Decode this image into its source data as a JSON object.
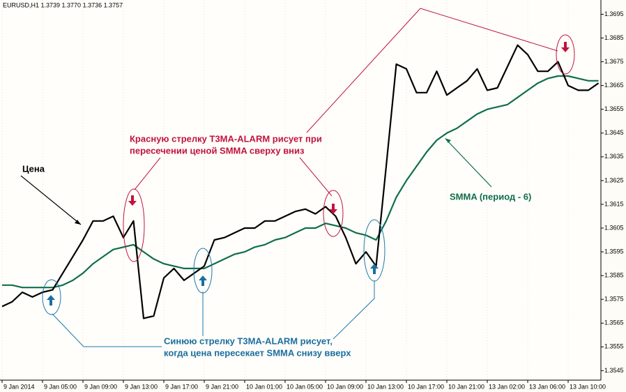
{
  "chart_data": {
    "type": "line",
    "title": "EURUSD,H1  1.3739 1.3770 1.3736 1.3757",
    "categories": [
      "9 Jan 2014",
      null,
      null,
      null,
      "9 Jan 05:00",
      null,
      null,
      null,
      "9 Jan 09:00",
      null,
      null,
      null,
      "9 Jan 13:00",
      null,
      null,
      null,
      "9 Jan 17:00",
      null,
      null,
      null,
      "9 Jan 21:00",
      null,
      null,
      null,
      "10 Jan 01:00",
      null,
      null,
      null,
      "10 Jan 05:00",
      null,
      null,
      null,
      "10 Jan 09:00",
      null,
      null,
      null,
      "10 Jan 13:00",
      null,
      null,
      null,
      "10 Jan 17:00",
      null,
      null,
      null,
      "10 Jan 21:00",
      null,
      null,
      null,
      "13 Jan 02:00",
      null,
      null,
      null,
      "13 Jan 06:00",
      null,
      null,
      null,
      "13 Jan 10:00",
      null,
      null,
      null
    ],
    "series": [
      {
        "name": "Цена",
        "color": "#000000",
        "values": [
          1.3572,
          1.3574,
          1.3578,
          1.3576,
          1.3578,
          1.3579,
          1.3586,
          1.3593,
          1.36,
          1.3608,
          1.3608,
          1.361,
          1.3601,
          1.3608,
          1.3567,
          1.3568,
          1.3584,
          1.3588,
          1.3583,
          1.3586,
          1.3589,
          1.36,
          1.3601,
          1.3603,
          1.3605,
          1.3605,
          1.3608,
          1.3608,
          1.361,
          1.3612,
          1.3613,
          1.3611,
          1.3614,
          1.361,
          1.3601,
          1.359,
          1.3595,
          1.3589,
          1.3631,
          1.3674,
          1.3672,
          1.3662,
          1.3662,
          1.3671,
          1.3661,
          1.3664,
          1.3667,
          1.3672,
          1.3663,
          1.3664,
          1.3673,
          1.3682,
          1.3678,
          1.3671,
          1.3671,
          1.3675,
          1.3665,
          1.3663,
          1.3663,
          1.3666
        ]
      },
      {
        "name": "SMMA (период - 6)",
        "color": "#0f6e4c",
        "values": [
          1.3581,
          1.3581,
          1.358,
          1.358,
          1.358,
          1.358,
          1.3581,
          1.3583,
          1.3586,
          1.359,
          1.3593,
          1.3596,
          1.3597,
          1.3598,
          1.3595,
          1.3592,
          1.359,
          1.3589,
          1.3588,
          1.3588,
          1.3588,
          1.359,
          1.3592,
          1.3594,
          1.3595,
          1.3597,
          1.3598,
          1.36,
          1.3601,
          1.3603,
          1.3605,
          1.3605,
          1.3607,
          1.3606,
          1.3605,
          1.3603,
          1.3602,
          1.36,
          1.3608,
          1.3618,
          1.3625,
          1.3631,
          1.3637,
          1.3642,
          1.3645,
          1.3647,
          1.365,
          1.3653,
          1.3655,
          1.3656,
          1.3657,
          1.366,
          1.3663,
          1.3666,
          1.3668,
          1.3669,
          1.3669,
          1.3668,
          1.3667,
          1.3667
        ]
      }
    ],
    "ylim": [
      1.3541,
      1.3701
    ],
    "yticks": [
      1.3545,
      1.3555,
      1.3565,
      1.3575,
      1.3585,
      1.3595,
      1.3605,
      1.3615,
      1.3625,
      1.3635,
      1.3645,
      1.3655,
      1.3665,
      1.3675,
      1.3685,
      1.3695
    ],
    "grid": true,
    "annotations": {
      "red": [
        "Красную стрелку T3MA-ALARM рисует при",
        "пересечении ценой SMMA сверху вниз"
      ],
      "blue": [
        "Синюю стрелку T3MA-ALARM рисует,",
        "когда цена пересекает SMMA снизу вверх"
      ]
    }
  }
}
